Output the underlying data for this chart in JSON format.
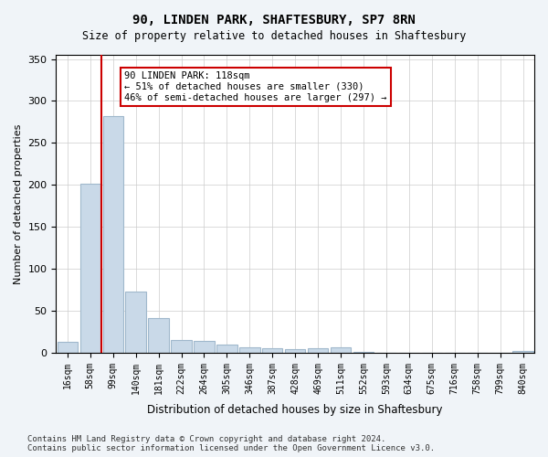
{
  "title1": "90, LINDEN PARK, SHAFTESBURY, SP7 8RN",
  "title2": "Size of property relative to detached houses in Shaftesbury",
  "xlabel": "Distribution of detached houses by size in Shaftesbury",
  "ylabel": "Number of detached properties",
  "footer": "Contains HM Land Registry data © Crown copyright and database right 2024.\nContains public sector information licensed under the Open Government Licence v3.0.",
  "bins": [
    "16sqm",
    "58sqm",
    "99sqm",
    "140sqm",
    "181sqm",
    "222sqm",
    "264sqm",
    "305sqm",
    "346sqm",
    "387sqm",
    "428sqm",
    "469sqm",
    "511sqm",
    "552sqm",
    "593sqm",
    "634sqm",
    "675sqm",
    "716sqm",
    "758sqm",
    "799sqm",
    "840sqm"
  ],
  "values": [
    13,
    201,
    282,
    73,
    41,
    15,
    14,
    10,
    6,
    5,
    4,
    5,
    6,
    1,
    0,
    0,
    0,
    0,
    0,
    0,
    2
  ],
  "bar_color": "#c9d9e8",
  "bar_edge_color": "#a0b8cc",
  "vline_x": 2,
  "vline_color": "#cc0000",
  "annotation_text": "90 LINDEN PARK: 118sqm\n← 51% of detached houses are smaller (330)\n46% of semi-detached houses are larger (297) →",
  "annotation_box_color": "#ffffff",
  "annotation_box_edge": "#cc0000",
  "ylim": [
    0,
    355
  ],
  "yticks": [
    0,
    50,
    100,
    150,
    200,
    250,
    300,
    350
  ],
  "bg_color": "#f0f4f8",
  "plot_bg_color": "#ffffff",
  "grid_color": "#cccccc"
}
